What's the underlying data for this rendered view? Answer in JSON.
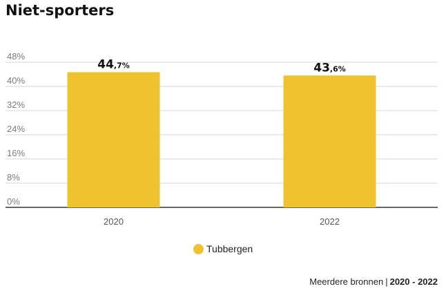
{
  "colors": {
    "bar": "#F0C230",
    "grid": "#d7d7d7",
    "baseline": "#333333"
  },
  "chart_data": {
    "type": "bar",
    "title": "Niet-sporters",
    "categories": [
      "2020",
      "2022"
    ],
    "series": [
      {
        "name": "Tubbergen",
        "values": [
          44.7,
          43.6
        ]
      }
    ],
    "value_labels": [
      {
        "whole": "44",
        "fraction": ",7%"
      },
      {
        "whole": "43",
        "fraction": ",6%"
      }
    ],
    "ylim": [
      0,
      48
    ],
    "yticks": [
      0,
      8,
      16,
      24,
      32,
      40,
      48
    ],
    "ytick_labels": [
      "0%",
      "8%",
      "16%",
      "24%",
      "32%",
      "40%",
      "48%"
    ],
    "xlabel": "",
    "ylabel": "",
    "grid": true,
    "legend_position": "bottom-center"
  },
  "legend": {
    "label": "Tubbergen",
    "icon": "circle-swatch"
  },
  "source": {
    "label": "Meerdere bronnen",
    "separator": "|",
    "period": "2020 - 2022"
  }
}
